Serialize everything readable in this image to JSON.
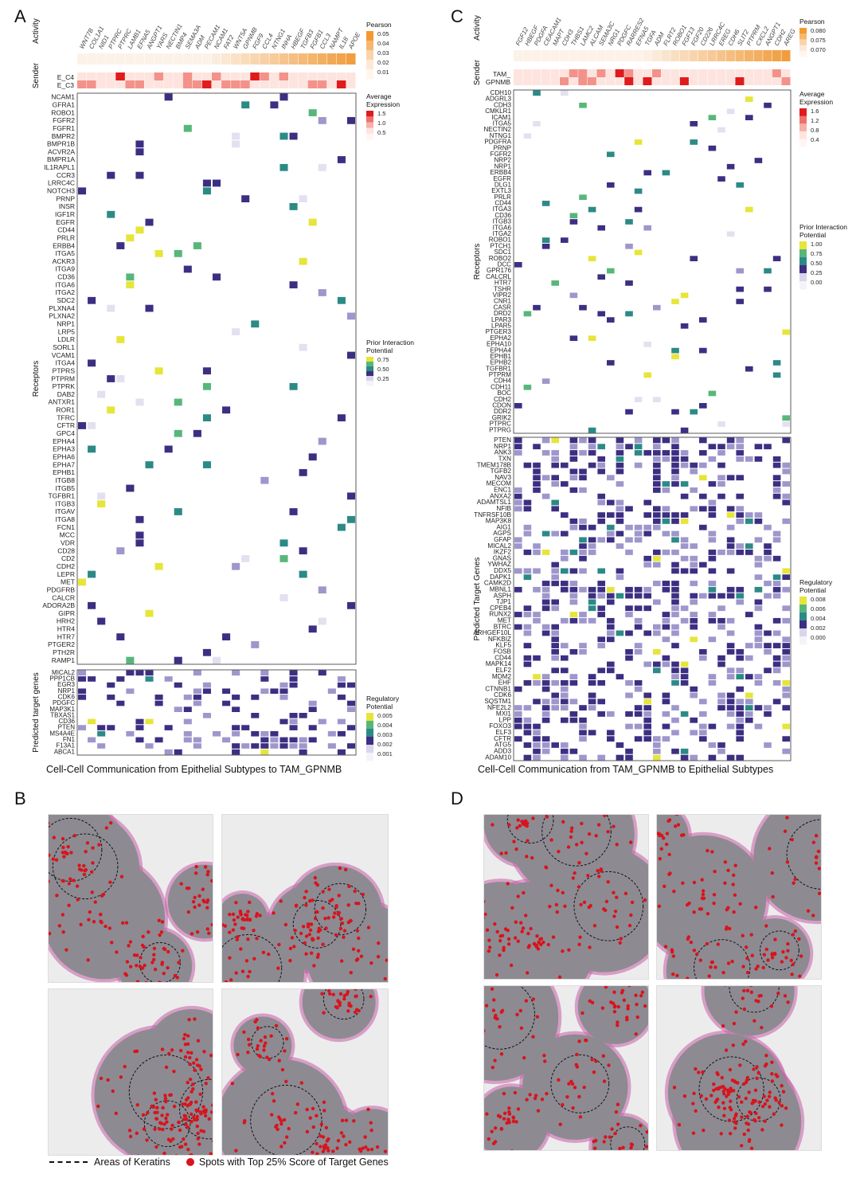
{
  "panels": {
    "A": "A",
    "B": "B",
    "C": "C",
    "D": "D"
  },
  "panelA": {
    "ligands": [
      "WNT7B",
      "COL1A1",
      "NID1",
      "PTPRC",
      "PTPRC",
      "LAMB1",
      "EFNA5",
      "ANGPT1",
      "YARS",
      "NECTIN1",
      "BMP4",
      "SEMA3A",
      "ADM",
      "PECAM1",
      "NCAM1",
      "FAT2",
      "WNT5A",
      "GPNMB",
      "FGF9",
      "CCL4",
      "NTNG1",
      "INHA",
      "HBEGF",
      "TGFB3",
      "FGFB1",
      "CCL3",
      "NAMPT",
      "IL18",
      "APOE"
    ],
    "sender_label": "Sender",
    "activity_label": "Activity",
    "sender_rows": [
      "E_C4",
      "E_C3"
    ],
    "receptors_title": "Receptors",
    "receptors": [
      "NCAM1",
      "GFRA1",
      "ROBO1",
      "FGFR2",
      "FGFR1",
      "BMPR2",
      "BMPR1B",
      "ACVR2A",
      "BMPR1A",
      "IL1RAPL1",
      "CCR3",
      "LRRC4C",
      "NOTCH3",
      "PRNP",
      "INSR",
      "IGF1R",
      "EGFR",
      "CD44",
      "PRLR",
      "ERBB4",
      "ITGA5",
      "ACKR3",
      "ITGA9",
      "CD36",
      "ITGA6",
      "ITGA2",
      "SDC2",
      "PLXNA4",
      "PLXNA2",
      "NRP1",
      "LRP5",
      "LDLR",
      "SORL1",
      "VCAM1",
      "ITGA4",
      "PTPRS",
      "PTPRM",
      "PTPRK",
      "DAB2",
      "ANTXR1",
      "ROR1",
      "TFRC",
      "CFTR",
      "GPC4",
      "EPHA4",
      "EPHA3",
      "EPHA6",
      "EPHA7",
      "EPHB1",
      "ITGB8",
      "ITGB5",
      "TGFBR1",
      "ITGB3",
      "ITGAV",
      "ITGA8",
      "FCN1",
      "MCC",
      "VDR",
      "CD28",
      "CD2",
      "CDH2",
      "LEPR",
      "MET",
      "PDGFRB",
      "CALCR",
      "ADORA2B",
      "GIPR",
      "HRH2",
      "HTR4",
      "HTR7",
      "PTGER2",
      "PTH2R",
      "RAMP1"
    ],
    "targets_title": "Predicted target genes",
    "targets": [
      "MICAL2",
      "PPP1CB",
      "EGR3",
      "NRP1",
      "CDK6",
      "PDGFC",
      "MAP3K1",
      "TBXAS1",
      "CD36",
      "PTEN",
      "MS4A4E",
      "FN1",
      "F13A1",
      "ABCA1"
    ],
    "caption": "Cell-Cell Communication from Epithelial Subtypes to TAM_GPNMB",
    "legend_pearson": {
      "title": "Pearson",
      "ticks": [
        "0.05",
        "0.04",
        "0.03",
        "0.02",
        "0.01"
      ]
    },
    "legend_avg": {
      "title": "Average Expression",
      "ticks": [
        "1.5",
        "1.0",
        "0.5"
      ]
    },
    "legend_prior": {
      "title": "Prior Interaction Potential",
      "ticks": [
        "0.75",
        "0.50",
        "0.25"
      ]
    },
    "legend_reg": {
      "title": "Regulatory Potential",
      "ticks": [
        "0.005",
        "0.004",
        "0.003",
        "0.002",
        "0.001"
      ]
    }
  },
  "panelC": {
    "ligands": [
      "FGF12",
      "HBEGF",
      "PDGFA",
      "CEACAM1",
      "MAPT",
      "CDH3",
      "THBS1",
      "LAMC2",
      "ALCAM",
      "SEMA3C",
      "NRG1",
      "PDGFC",
      "RARRES2",
      "EFNA5",
      "TGFA",
      "ADM",
      "FLRT2",
      "ROBO1",
      "FGF13",
      "FGF20",
      "CD226",
      "LRRC4C",
      "EREG",
      "CDH6",
      "SLIT2",
      "PTPRM",
      "CXCL2",
      "ANGPT1",
      "CDH2",
      "AREG"
    ],
    "sender_label": "Sender",
    "activity_label": "Activity",
    "sender_rows": [
      "TAM_",
      "GPNMB"
    ],
    "receptors_title": "Receptors",
    "receptors": [
      "CDH10",
      "ADGRL3",
      "CDH3",
      "CMKLR1",
      "ICAM1",
      "ITGA5",
      "NECTIN2",
      "NTNG1",
      "PDGFRA",
      "PRNP",
      "FGFR2",
      "NRP2",
      "NRP1",
      "ERBB4",
      "EGFR",
      "DLG1",
      "EXTL3",
      "PRLR",
      "CD44",
      "ITGA3",
      "CD36",
      "ITGB3",
      "ITGA6",
      "ITGA2",
      "ROBO1",
      "PTCH1",
      "SDC1",
      "ROBO2",
      "DCC",
      "GPR176",
      "CALCRL",
      "HTR7",
      "TSHR",
      "VIPR2",
      "CNR1",
      "CASR",
      "DRD2",
      "LPAR3",
      "LPAR5",
      "PTGER3",
      "EPHA2",
      "EPHA10",
      "EPHA4",
      "EPHB1",
      "EPHB2",
      "TGFBR1",
      "PTPRM",
      "CDH4",
      "CDH11",
      "BOC",
      "CDH2",
      "CDON",
      "DDR2",
      "GRIK2",
      "PTPRC",
      "PTPRG"
    ],
    "targets_title": "Predicted Target Genes",
    "targets": [
      "PTEN",
      "NRP1",
      "ANK3",
      "TXN",
      "TMEM178B",
      "TGFB2",
      "NAV3",
      "MECOM",
      "ENC1",
      "ANXA2",
      "ADAMTSL1",
      "NFIB",
      "TNFRSF10B",
      "MAP3K8",
      "AIG1",
      "AGPS",
      "GFAP",
      "MICAL2",
      "IKZF2",
      "GNAS",
      "YWHAZ",
      "DDX5",
      "DAPK1",
      "CAMK2D",
      "MBNL1",
      "ASPH",
      "TJP1",
      "CPEB4",
      "RUNX2",
      "MET",
      "BTRC",
      "ARHGEF10L",
      "NFKBIZ",
      "KLF5",
      "FOSB",
      "CD44",
      "MAPK14",
      "ELF2",
      "MDM2",
      "EHF",
      "CTNNB1",
      "CDK6",
      "SQSTM1",
      "NFE2L2",
      "MXI1",
      "LPP",
      "FOXO3",
      "ELF3",
      "CFTR",
      "ATG5",
      "ADD3",
      "ADAM10"
    ],
    "caption": "Cell-Cell Communication from TAM_GPNMB to Epithelial Subtypes",
    "legend_pearson": {
      "title": "Pearson",
      "ticks": [
        "0.080",
        "0.075",
        "0.070"
      ]
    },
    "legend_avg": {
      "title": "Average Expression",
      "ticks": [
        "1.6",
        "1.2",
        "0.8",
        "0.4"
      ]
    },
    "legend_prior": {
      "title": "Prior Interaction Potential",
      "ticks": [
        "1.00",
        "0.75",
        "0.50",
        "0.25",
        "0.00"
      ]
    },
    "legend_reg": {
      "title": "Regulatory Potential",
      "ticks": [
        "0.008",
        "0.006",
        "0.004",
        "0.002",
        "0.000"
      ]
    }
  },
  "legend_bottom": {
    "keratin": "Areas of Keratins",
    "spots": "Spots with Top 25% Score of Target Genes"
  },
  "colors": {
    "purple": "#3c2f82",
    "lavender": "#9e97cc",
    "teal": "#2c8a86",
    "green": "#57b77a",
    "yellow": "#e6e53a",
    "red": "#d8141c",
    "orange": "#f3a33a",
    "he_pink": "#c75fa8"
  }
}
